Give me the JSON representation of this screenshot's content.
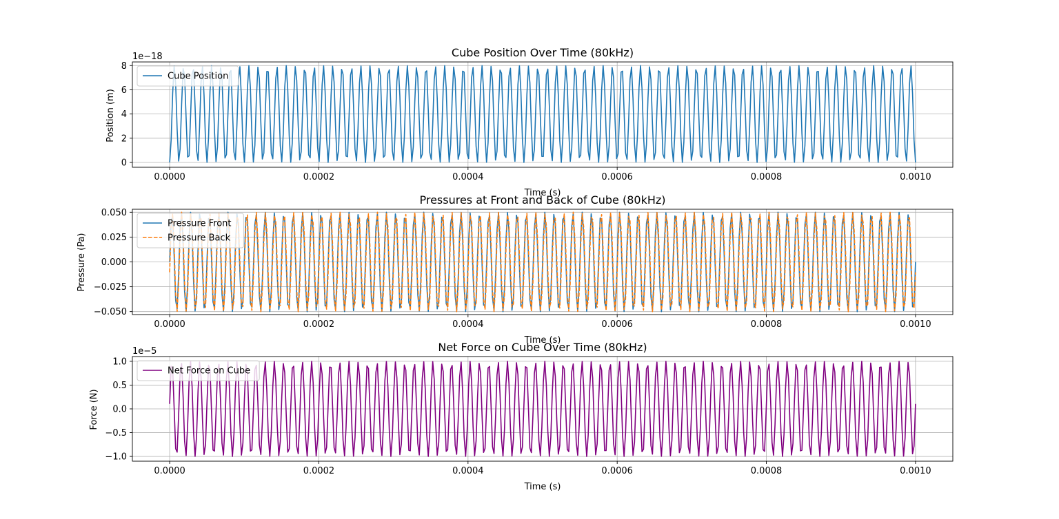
{
  "chart_data": [
    {
      "type": "line",
      "title": "Cube Position Over Time (80kHz)",
      "xlabel": "Time (s)",
      "ylabel": "Position (m)",
      "offset_text": "1e−18",
      "xlim": [
        -5e-05,
        0.00105
      ],
      "ylim": [
        -0.4,
        8.3
      ],
      "xticks": [
        0,
        0.0002,
        0.0004,
        0.0006,
        0.0008,
        0.001
      ],
      "xtick_labels": [
        "0.0000",
        "0.0002",
        "0.0004",
        "0.0006",
        "0.0008",
        "0.0010"
      ],
      "yticks": [
        0,
        2,
        4,
        6,
        8
      ],
      "ytick_labels": [
        "0",
        "2",
        "4",
        "6",
        "8"
      ],
      "grid": true,
      "legend_position": "upper-left",
      "series": [
        {
          "name": "Cube Position",
          "color": "#1f77b4",
          "dash": "solid",
          "function": "offset-sine",
          "amplitude": 4,
          "offset": 4,
          "phase_deg": -90,
          "frequency_hz": 80000,
          "t_start": 0,
          "t_end": 0.001,
          "samples": 500
        }
      ]
    },
    {
      "type": "line",
      "title": "Pressures at Front and Back of Cube (80kHz)",
      "xlabel": "Time (s)",
      "ylabel": "Pressure (Pa)",
      "offset_text": "",
      "xlim": [
        -5e-05,
        0.00105
      ],
      "ylim": [
        -0.053,
        0.053
      ],
      "xticks": [
        0,
        0.0002,
        0.0004,
        0.0006,
        0.0008,
        0.001
      ],
      "xtick_labels": [
        "0.0000",
        "0.0002",
        "0.0004",
        "0.0006",
        "0.0008",
        "0.0010"
      ],
      "yticks": [
        -0.05,
        -0.025,
        0,
        0.025,
        0.05
      ],
      "ytick_labels": [
        "−0.050",
        "−0.025",
        "0.000",
        "0.025",
        "0.050"
      ],
      "grid": true,
      "legend_position": "upper-left",
      "series": [
        {
          "name": "Pressure Front",
          "color": "#1f77b4",
          "dash": "solid",
          "function": "sine",
          "amplitude": 0.05,
          "offset": 0,
          "phase_deg": 0,
          "frequency_hz": 80000,
          "t_start": 0,
          "t_end": 0.001,
          "samples": 500
        },
        {
          "name": "Pressure Back",
          "color": "#ff7f0e",
          "dash": "dashed",
          "function": "sine",
          "amplitude": 0.05,
          "offset": 0,
          "phase_deg": -12,
          "frequency_hz": 80000,
          "t_start": 0,
          "t_end": 0.001,
          "samples": 500
        }
      ]
    },
    {
      "type": "line",
      "title": "Net Force on Cube Over Time (80kHz)",
      "xlabel": "Time (s)",
      "ylabel": "Force (N)",
      "offset_text": "1e−5",
      "xlim": [
        -5e-05,
        0.00105
      ],
      "ylim": [
        -1.1,
        1.1
      ],
      "xticks": [
        0,
        0.0002,
        0.0004,
        0.0006,
        0.0008,
        0.001
      ],
      "xtick_labels": [
        "0.0000",
        "0.0002",
        "0.0004",
        "0.0006",
        "0.0008",
        "0.0010"
      ],
      "yticks": [
        -1.0,
        -0.5,
        0,
        0.5,
        1.0
      ],
      "ytick_labels": [
        "−1.0",
        "−0.5",
        "0.0",
        "0.5",
        "1.0"
      ],
      "grid": true,
      "legend_position": "upper-left",
      "series": [
        {
          "name": "Net Force on Cube",
          "color": "#800080",
          "dash": "solid",
          "function": "sine",
          "amplitude": 1.0,
          "offset": 0,
          "phase_deg": 6,
          "frequency_hz": 80000,
          "t_start": 0,
          "t_end": 0.001,
          "samples": 500
        }
      ]
    }
  ]
}
